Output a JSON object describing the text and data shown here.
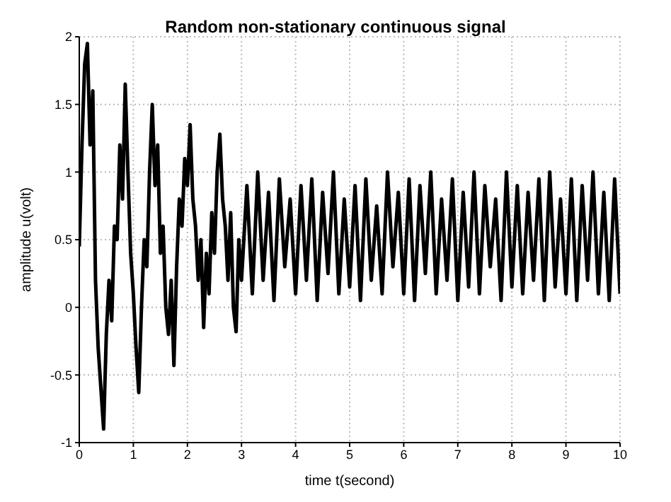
{
  "chart_data": {
    "type": "line",
    "title": "Random non-stationary continuous signal",
    "xlabel": "time t(second)",
    "ylabel": "amplitude u(volt)",
    "x": [
      0,
      0.05,
      0.1,
      0.15,
      0.2,
      0.25,
      0.3,
      0.35,
      0.4,
      0.45,
      0.5,
      0.55,
      0.6,
      0.65,
      0.7,
      0.75,
      0.8,
      0.85,
      0.9,
      0.95,
      1,
      1.05,
      1.1,
      1.15,
      1.2,
      1.25,
      1.3,
      1.35,
      1.4,
      1.45,
      1.5,
      1.55,
      1.6,
      1.65,
      1.7,
      1.75,
      1.8,
      1.85,
      1.9,
      1.95,
      2,
      2.05,
      2.1,
      2.15,
      2.2,
      2.25,
      2.3,
      2.35,
      2.4,
      2.45,
      2.5,
      2.55,
      2.6,
      2.65,
      2.7,
      2.75,
      2.8,
      2.85,
      2.9,
      2.95,
      3,
      3.1,
      3.2,
      3.3,
      3.4,
      3.5,
      3.6,
      3.7,
      3.8,
      3.9,
      4,
      4.1,
      4.2,
      4.3,
      4.4,
      4.5,
      4.6,
      4.7,
      4.8,
      4.9,
      5,
      5.1,
      5.2,
      5.3,
      5.4,
      5.5,
      5.6,
      5.7,
      5.8,
      5.9,
      6,
      6.1,
      6.2,
      6.3,
      6.4,
      6.5,
      6.6,
      6.7,
      6.8,
      6.9,
      7,
      7.1,
      7.2,
      7.3,
      7.4,
      7.5,
      7.6,
      7.7,
      7.8,
      7.9,
      8,
      8.1,
      8.2,
      8.3,
      8.4,
      8.5,
      8.6,
      8.7,
      8.8,
      8.9,
      9,
      9.1,
      9.2,
      9.3,
      9.4,
      9.5,
      9.6,
      9.7,
      9.8,
      9.9,
      10
    ],
    "values": [
      0.45,
      1.2,
      1.8,
      1.95,
      1.2,
      1.6,
      0.2,
      -0.3,
      -0.6,
      -0.9,
      -0.2,
      0.2,
      -0.1,
      0.6,
      0.5,
      1.2,
      0.8,
      1.65,
      1,
      0.4,
      0.1,
      -0.3,
      -0.63,
      0,
      0.5,
      0.3,
      1,
      1.5,
      0.9,
      1.2,
      0.4,
      0.6,
      0,
      -0.2,
      0.2,
      -0.43,
      0.3,
      0.8,
      0.6,
      1.1,
      0.9,
      1.35,
      0.8,
      0.6,
      0.2,
      0.5,
      -0.15,
      0.4,
      0.1,
      0.7,
      0.4,
      1,
      1.28,
      0.8,
      0.6,
      0.2,
      0.7,
      0,
      -0.18,
      0.5,
      0.2,
      0.9,
      0.1,
      1,
      0.2,
      0.85,
      0.05,
      0.95,
      0.3,
      0.8,
      0.1,
      0.9,
      0.2,
      0.95,
      0.05,
      0.85,
      0.25,
      1,
      0.1,
      0.8,
      0.15,
      0.9,
      0.05,
      0.95,
      0.2,
      0.75,
      0.1,
      1,
      0.3,
      0.85,
      0.1,
      0.95,
      0.05,
      0.9,
      0.25,
      1,
      0.1,
      0.8,
      0.2,
      0.95,
      0.05,
      0.85,
      0.15,
      1,
      0.1,
      0.9,
      0.3,
      0.8,
      0.05,
      1,
      0.15,
      0.9,
      0.1,
      0.85,
      0.2,
      0.95,
      0.05,
      1,
      0.15,
      0.8,
      0.1,
      0.95,
      0.05,
      0.9,
      0.2,
      1,
      0.1,
      0.85,
      0.05,
      0.95,
      0.1
    ],
    "color": "#000000",
    "xlim": [
      0,
      10
    ],
    "xticks": [
      0,
      1,
      2,
      3,
      4,
      5,
      6,
      7,
      8,
      9,
      10
    ],
    "ylim": [
      -1,
      2
    ],
    "yticks": [
      -1,
      -0.5,
      0,
      0.5,
      1,
      1.5,
      2
    ],
    "grid": true,
    "line_style": "solid",
    "marker": "none"
  }
}
